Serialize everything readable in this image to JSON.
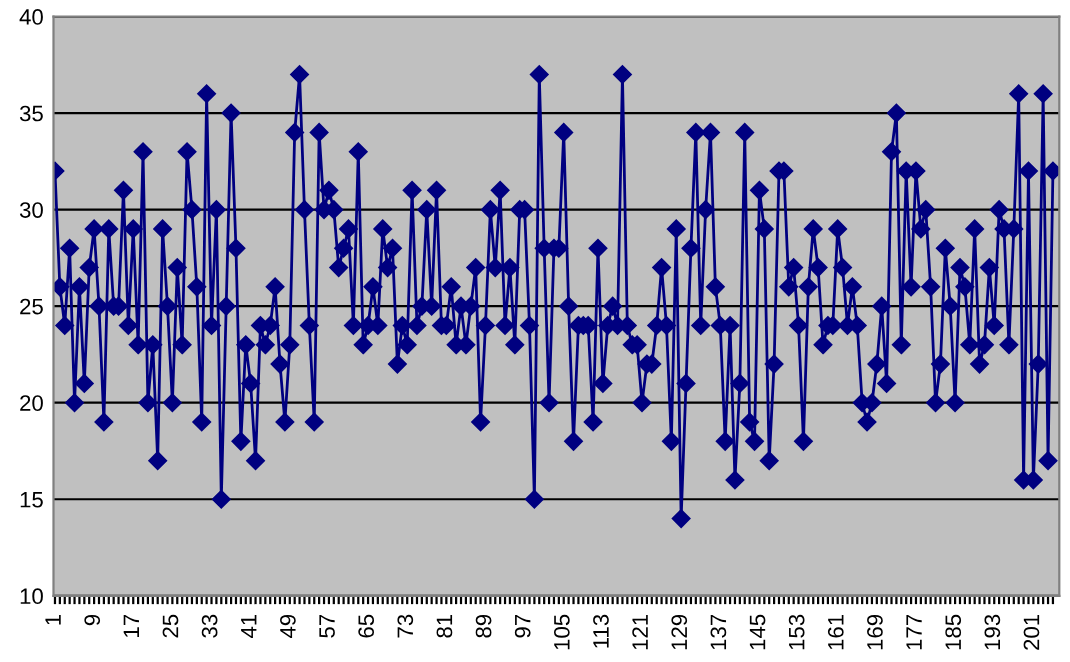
{
  "chart_data": {
    "type": "line",
    "categories": [
      "1",
      null,
      null,
      null,
      null,
      null,
      null,
      null,
      "9",
      null,
      null,
      null,
      null,
      null,
      null,
      null,
      "17",
      null,
      null,
      null,
      null,
      null,
      null,
      null,
      "25",
      null,
      null,
      null,
      null,
      null,
      null,
      null,
      "33",
      null,
      null,
      null,
      null,
      null,
      null,
      null,
      "41",
      null,
      null,
      null,
      null,
      null,
      null,
      null,
      "49",
      null,
      null,
      null,
      null,
      null,
      null,
      null,
      "57",
      null,
      null,
      null,
      null,
      null,
      null,
      null,
      "65",
      null,
      null,
      null,
      null,
      null,
      null,
      null,
      "73",
      null,
      null,
      null,
      null,
      null,
      null,
      null,
      "81",
      null,
      null,
      null,
      null,
      null,
      null,
      null,
      "89",
      null,
      null,
      null,
      null,
      null,
      null,
      null,
      "97",
      null,
      null,
      null,
      null,
      null,
      null,
      null,
      "105",
      null,
      null,
      null,
      null,
      null,
      null,
      null,
      "113",
      null,
      null,
      null,
      null,
      null,
      null,
      null,
      "121",
      null,
      null,
      null,
      null,
      null,
      null,
      null,
      "129",
      null,
      null,
      null,
      null,
      null,
      null,
      null,
      "137",
      null,
      null,
      null,
      null,
      null,
      null,
      null,
      "145",
      null,
      null,
      null,
      null,
      null,
      null,
      null,
      "153",
      null,
      null,
      null,
      null,
      null,
      null,
      null,
      "161",
      null,
      null,
      null,
      null,
      null,
      null,
      null,
      "169",
      null,
      null,
      null,
      null,
      null,
      null,
      null,
      "177",
      null,
      null,
      null,
      null,
      null,
      null,
      null,
      "185",
      null,
      null,
      null,
      null,
      null,
      null,
      null,
      "193",
      null,
      null,
      null,
      null,
      null,
      null,
      null,
      "201",
      null,
      null,
      null,
      null
    ],
    "series": [
      {
        "color": "#000080",
        "values": [
          32,
          26,
          24,
          28,
          20,
          26,
          21,
          27,
          29,
          25,
          19,
          29,
          25,
          25,
          31,
          24,
          29,
          23,
          33,
          20,
          23,
          17,
          29,
          25,
          20,
          27,
          23,
          33,
          30,
          26,
          19,
          36,
          24,
          30,
          15,
          25,
          35,
          28,
          18,
          23,
          21,
          17,
          24,
          23,
          24,
          26,
          22,
          19,
          23,
          34,
          37,
          30,
          24,
          19,
          34,
          30,
          31,
          30,
          27,
          28,
          29,
          24,
          33,
          23,
          24,
          26,
          24,
          29,
          27,
          28,
          22,
          24,
          23,
          31,
          24,
          25,
          30,
          25,
          31,
          24,
          24,
          26,
          23,
          25,
          23,
          25,
          27,
          19,
          24,
          30,
          27,
          31,
          24,
          27,
          23,
          30,
          30,
          24,
          15,
          37,
          28,
          20,
          28,
          28,
          34,
          25,
          18,
          24,
          24,
          24,
          19,
          28,
          21,
          24,
          25,
          24,
          37,
          24,
          23,
          23,
          20,
          22,
          22,
          24,
          27,
          24,
          18,
          29,
          14,
          21,
          28,
          34,
          24,
          30,
          34,
          26,
          24,
          18,
          24,
          16,
          21,
          34,
          19,
          18,
          31,
          29,
          17,
          22,
          32,
          32,
          26,
          27,
          24,
          18,
          26,
          29,
          27,
          23,
          24,
          24,
          29,
          27,
          24,
          26,
          24,
          20,
          19,
          20,
          22,
          25,
          21,
          33,
          35,
          23,
          32,
          26,
          32,
          29,
          30,
          26,
          20,
          22,
          28,
          25,
          20,
          27,
          26,
          23,
          29,
          22,
          23,
          27,
          24,
          30,
          29,
          23,
          29,
          36,
          16,
          32,
          16,
          22,
          36,
          17,
          32
        ]
      }
    ],
    "ylim": [
      10,
      40
    ],
    "yticks": [
      10,
      15,
      20,
      25,
      30,
      35,
      40
    ],
    "grid": "y",
    "marker": "diamond",
    "line_style": "solid",
    "legend": false
  }
}
